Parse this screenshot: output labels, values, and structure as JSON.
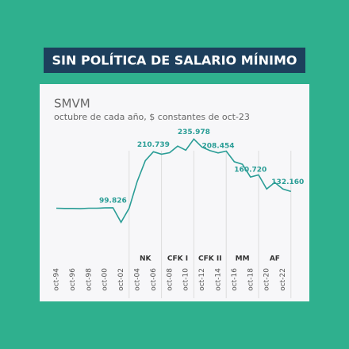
{
  "chart_data": {
    "type": "line",
    "title": "SIN POLÍTICA DE SALARIO MÍNIMO",
    "series_title": "SMVM",
    "subtitle": "octubre de cada año, $ constantes de oct-23",
    "categories": [
      "oct-94",
      null,
      "oct-96",
      null,
      "oct-98",
      null,
      "oct-00",
      null,
      "oct-02",
      null,
      "oct-04",
      null,
      "oct-06",
      null,
      "oct-08",
      null,
      "oct-10",
      null,
      "oct-12",
      null,
      "oct-14",
      null,
      "oct-16",
      null,
      "oct-18",
      null,
      "oct-20",
      null,
      "oct-22",
      null
    ],
    "values": [
      99000,
      98500,
      98500,
      98000,
      99000,
      99000,
      99500,
      99826,
      71000,
      99000,
      152000,
      193000,
      210739,
      206000,
      209000,
      222000,
      214000,
      235978,
      220000,
      213000,
      208454,
      212000,
      191000,
      186000,
      160720,
      165000,
      137000,
      150000,
      137000,
      132160
    ],
    "value_labels": [
      null,
      null,
      null,
      null,
      null,
      null,
      null,
      "99.826",
      null,
      null,
      null,
      null,
      "210.739",
      null,
      null,
      null,
      null,
      "235.978",
      null,
      null,
      "208.454",
      null,
      null,
      null,
      "160.720",
      null,
      null,
      null,
      null,
      "132.160"
    ],
    "color": "#2a9d96",
    "ylim": [
      40000,
      260000
    ],
    "periods": [
      {
        "label": "NK",
        "start": 9,
        "end": 13
      },
      {
        "label": "CFK I",
        "start": 13,
        "end": 17
      },
      {
        "label": "CFK II",
        "start": 17,
        "end": 21
      },
      {
        "label": "MM",
        "start": 21,
        "end": 25
      },
      {
        "label": "AF",
        "start": 25,
        "end": 29
      }
    ]
  }
}
